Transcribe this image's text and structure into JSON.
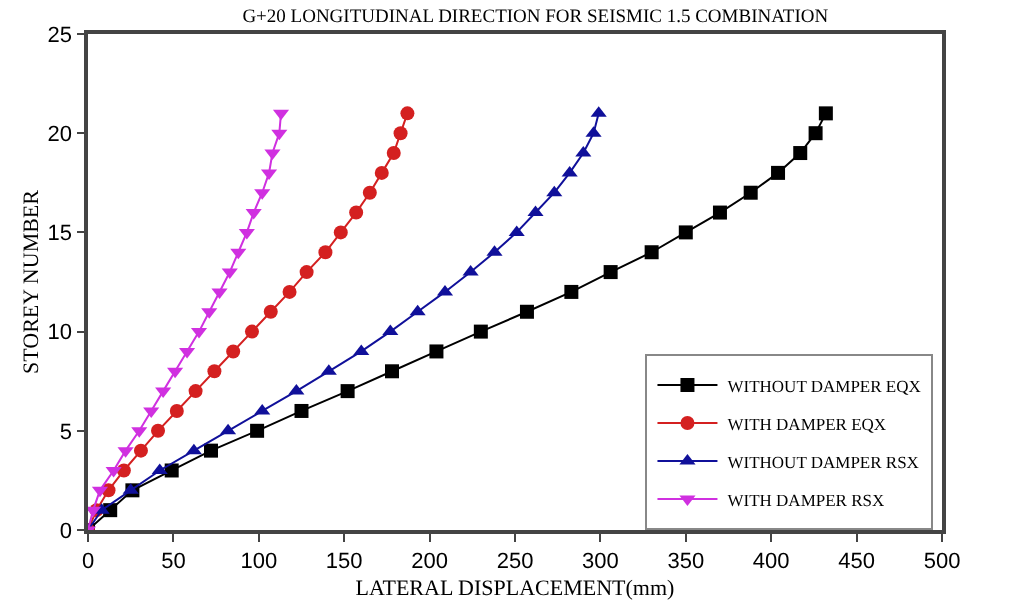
{
  "chart_data": {
    "type": "line",
    "title": "G+20 LONGITUDINAL DIRECTION FOR SEISMIC 1.5 COMBINATION",
    "xlabel": "LATERAL DISPLACEMENT(mm)",
    "ylabel": "STOREY NUMBER",
    "xlim": [
      0,
      500
    ],
    "xticks": [
      0,
      50,
      100,
      150,
      200,
      250,
      300,
      350,
      400,
      450,
      500
    ],
    "ylim": [
      0,
      25
    ],
    "yticks": [
      0,
      5,
      10,
      15,
      20,
      25
    ],
    "grid": false,
    "legend": "bottom right",
    "series": [
      {
        "name": "WITHOUT DAMPER EQX",
        "color": "#000000",
        "marker": "square",
        "x": [
          0,
          13,
          26,
          49,
          72,
          99,
          125,
          152,
          178,
          204,
          230,
          257,
          283,
          306,
          330,
          350,
          370,
          388,
          404,
          417,
          426,
          432
        ],
        "values": [
          0,
          1,
          2,
          3,
          4,
          5,
          6,
          7,
          8,
          9,
          10,
          11,
          12,
          13,
          14,
          15,
          16,
          17,
          18,
          19,
          20,
          21
        ]
      },
      {
        "name": "WITH DAMPER EQX",
        "color": "#d42020",
        "marker": "circle",
        "x": [
          0,
          5,
          12,
          21,
          31,
          41,
          52,
          63,
          74,
          85,
          96,
          107,
          118,
          128,
          139,
          148,
          157,
          165,
          172,
          179,
          183,
          187
        ],
        "values": [
          0,
          1,
          2,
          3,
          4,
          5,
          6,
          7,
          8,
          9,
          10,
          11,
          12,
          13,
          14,
          15,
          16,
          17,
          18,
          19,
          20,
          21
        ]
      },
      {
        "name": "WITHOUT DAMPER RSX",
        "color": "#10109a",
        "marker": "triangle",
        "x": [
          0,
          8,
          25,
          42,
          62,
          82,
          102,
          122,
          141,
          160,
          177,
          193,
          209,
          224,
          238,
          251,
          262,
          273,
          282,
          290,
          296,
          299
        ],
        "values": [
          0,
          1,
          2,
          3,
          4,
          5,
          6,
          7,
          8,
          9,
          10,
          11,
          12,
          13,
          14,
          15,
          16,
          17,
          18,
          19,
          20,
          21
        ]
      },
      {
        "name": "WITH DAMPER RSX",
        "color": "#d030e0",
        "marker": "triangle-down",
        "x": [
          0,
          3,
          7,
          15,
          22,
          30,
          37,
          44,
          51,
          58,
          65,
          71,
          77,
          83,
          88,
          93,
          97,
          102,
          106,
          108,
          112,
          113
        ],
        "values": [
          0,
          1,
          2,
          3,
          4,
          5,
          6,
          7,
          8,
          9,
          10,
          11,
          12,
          13,
          14,
          15,
          16,
          17,
          18,
          19,
          20,
          21
        ]
      }
    ]
  }
}
